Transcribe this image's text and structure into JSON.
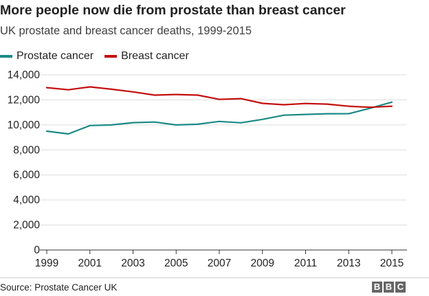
{
  "header": {
    "title": "More people now die from prostate than breast cancer",
    "subtitle": "UK prostate and breast cancer deaths, 1999-2015"
  },
  "footer": {
    "source": "Source: Prostate Cancer UK",
    "logo_letters": [
      "B",
      "B",
      "C"
    ]
  },
  "colors": {
    "prostate": "#1a8a86",
    "breast": "#c40d0d",
    "grid": "#dddddd",
    "axis": "#333333",
    "tick_text": "#222222"
  },
  "chart_data": {
    "type": "line",
    "title": "More people now die from prostate than breast cancer",
    "subtitle": "UK prostate and breast cancer deaths, 1999-2015",
    "xlabel": "",
    "ylabel": "",
    "x": [
      1999,
      2000,
      2001,
      2002,
      2003,
      2004,
      2005,
      2006,
      2007,
      2008,
      2009,
      2010,
      2011,
      2012,
      2013,
      2014,
      2015
    ],
    "xticks": [
      "1999",
      "2001",
      "2003",
      "2005",
      "2007",
      "2009",
      "2011",
      "2013",
      "2015"
    ],
    "yticks": [
      "0",
      "2,000",
      "4,000",
      "6,000",
      "8,000",
      "10,000",
      "12,000",
      "14,000"
    ],
    "ylim": [
      0,
      14000
    ],
    "xlim": [
      1999,
      2015
    ],
    "grid": true,
    "legend_position": "top-left",
    "series": [
      {
        "name": "Prostate cancer",
        "color": "#1a8a86",
        "values": [
          9500,
          9280,
          9950,
          10000,
          10180,
          10230,
          10000,
          10050,
          10280,
          10170,
          10440,
          10780,
          10840,
          10890,
          10900,
          11330,
          11820
        ]
      },
      {
        "name": "Breast cancer",
        "color": "#c40d0d",
        "values": [
          12980,
          12810,
          13040,
          12850,
          12640,
          12380,
          12430,
          12380,
          12040,
          12100,
          11720,
          11610,
          11710,
          11660,
          11490,
          11410,
          11490
        ]
      }
    ]
  }
}
